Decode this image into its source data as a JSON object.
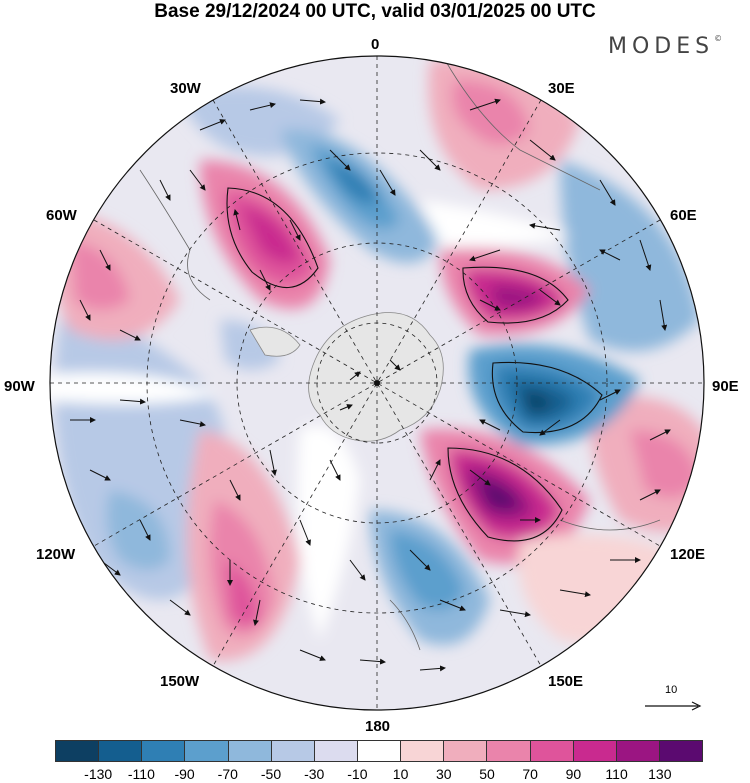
{
  "title": "Base 29/12/2024 00 UTC, valid 03/01/2025 00 UTC",
  "brand": "MODES",
  "brand_mark": "©",
  "map": {
    "projection": "south-polar-stereographic",
    "longitude_labels": [
      {
        "text": "0"
      },
      {
        "text": "30E"
      },
      {
        "text": "60E"
      },
      {
        "text": "90E"
      },
      {
        "text": "120E"
      },
      {
        "text": "150E"
      },
      {
        "text": "180"
      },
      {
        "text": "150W"
      },
      {
        "text": "120W"
      },
      {
        "text": "90W"
      },
      {
        "text": "60W"
      },
      {
        "text": "30W"
      }
    ],
    "reference_vector": "10"
  },
  "colorbar": {
    "colors": [
      "#0d3f62",
      "#145e8f",
      "#2f7fb4",
      "#5c9fcd",
      "#8fb8dc",
      "#b7c9e6",
      "#dcdcef",
      "#ffffff",
      "#f8d5d6",
      "#f0aebd",
      "#ea84ab",
      "#df549b",
      "#c92a8f",
      "#9b1582",
      "#5b0a70"
    ],
    "labels": [
      "-130",
      "-110",
      "-90",
      "-70",
      "-50",
      "-30",
      "-10",
      "10",
      "30",
      "50",
      "70",
      "90",
      "110",
      "130"
    ]
  }
}
